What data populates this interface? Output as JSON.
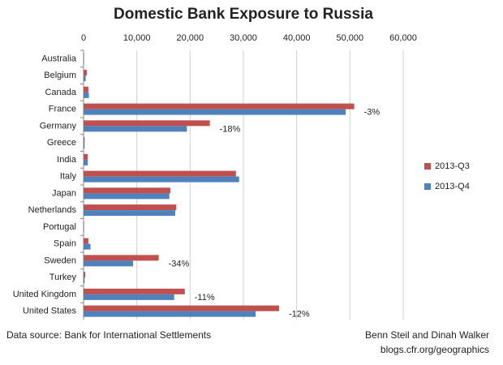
{
  "chart_data": {
    "type": "hbar",
    "title": "Domestic Bank Exposure to Russia",
    "categories": [
      "Australia",
      "Belgium",
      "Canada",
      "France",
      "Germany",
      "Greece",
      "India",
      "Italy",
      "Japan",
      "Netherlands",
      "Portugal",
      "Spain",
      "Sweden",
      "Turkey",
      "United Kingdom",
      "United States"
    ],
    "series": [
      {
        "name": "2013-Q3",
        "color": "#c0504d",
        "values": [
          100,
          600,
          900,
          50800,
          23700,
          200,
          800,
          28600,
          16300,
          17400,
          100,
          900,
          14100,
          300,
          19000,
          36700
        ]
      },
      {
        "name": "2013-Q4",
        "color": "#4f81bd",
        "values": [
          100,
          400,
          1000,
          49200,
          19400,
          200,
          800,
          29200,
          16100,
          17200,
          100,
          1300,
          9300,
          200,
          17000,
          32300
        ]
      }
    ],
    "xlim": [
      0,
      60000
    ],
    "xticks": [
      0,
      {
        "value": 10000,
        "label": "10,000"
      },
      {
        "value": 20000,
        "label": "20,000"
      },
      {
        "value": 30000,
        "label": "30,000"
      },
      {
        "value": 40000,
        "label": "40,000"
      },
      {
        "value": 50000,
        "label": "50,000"
      },
      {
        "value": 60000,
        "label": "60,000"
      }
    ],
    "grid": true,
    "legend": "right",
    "annotations": [
      {
        "category": "France",
        "text": "-3%"
      },
      {
        "category": "Germany",
        "text": "-18%"
      },
      {
        "category": "Sweden",
        "text": "-34%"
      },
      {
        "category": "United Kingdom",
        "text": "-11%"
      },
      {
        "category": "United States",
        "text": "-12%"
      }
    ],
    "source": "Data source: Bank for International Settlements",
    "credit": [
      "Benn Steil and Dinah Walker",
      "blogs.cfr.org/geographics"
    ]
  }
}
